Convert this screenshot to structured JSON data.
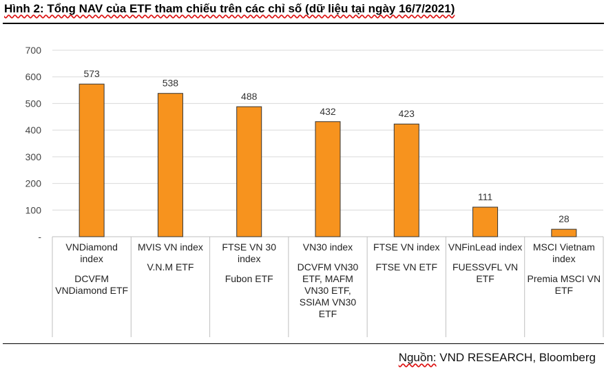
{
  "title": "Hình 2: Tổng NAV của ETF tham chiếu trên các chỉ số (dữ liệu tại ngày 16/7/2021)",
  "source": {
    "prefix": "Nguồn:",
    "text": " VND RESEARCH, Bloomberg"
  },
  "chart_data": {
    "type": "bar",
    "title": "",
    "xlabel": "",
    "ylabel": "",
    "ylim": [
      0,
      700
    ],
    "yticks": [
      "-",
      "100",
      "200",
      "300",
      "400",
      "500",
      "600",
      "700"
    ],
    "grid": true,
    "bar_color": "#f7931e",
    "bar_edge_color": "#333333",
    "categories": [
      {
        "index": "VNDiamond index",
        "etf": "DCVFM VNDiamond ETF"
      },
      {
        "index": "MVIS VN index",
        "etf": "V.N.M ETF"
      },
      {
        "index": "FTSE VN 30 index",
        "etf": "Fubon ETF"
      },
      {
        "index": "VN30 index",
        "etf": "DCVFM VN30 ETF, MAFM VN30 ETF, SSIAM VN30 ETF"
      },
      {
        "index": "FTSE VN index",
        "etf": "FTSE VN ETF"
      },
      {
        "index": "VNFinLead index",
        "etf": "FUESSVFL VN ETF"
      },
      {
        "index": "MSCI Vietnam index",
        "etf": "Premia MSCI VN ETF"
      }
    ],
    "values": [
      573,
      538,
      488,
      432,
      423,
      111,
      28
    ],
    "data_labels": [
      "573",
      "538",
      "488",
      "432",
      "423",
      "111",
      "28"
    ]
  }
}
